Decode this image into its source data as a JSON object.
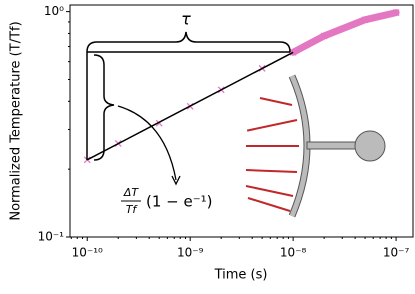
{
  "chart_data": {
    "type": "line",
    "xlabel": "Time (s)",
    "ylabel": "Normalized Temperature (T/Tf)",
    "xscale": "log",
    "yscale": "log",
    "xlim": [
      6.8e-11,
      1.46e-07
    ],
    "ylim": [
      0.1,
      1.07
    ],
    "xticks": [
      {
        "value": 1e-10,
        "label": "10⁻¹⁰"
      },
      {
        "value": 1e-09,
        "label": "10⁻⁹"
      },
      {
        "value": 1e-08,
        "label": "10⁻⁸"
      },
      {
        "value": 1e-07,
        "label": "10⁻⁷"
      }
    ],
    "yticks": [
      {
        "value": 0.1,
        "label": "10⁻¹"
      },
      {
        "value": 1,
        "label": "10⁰"
      }
    ],
    "series": [
      {
        "color": "#e377c2",
        "marker": "x",
        "x": [
          1e-10,
          2e-10,
          5e-10,
          1e-09,
          2e-09,
          5e-09,
          1e-08,
          2e-08,
          5e-08,
          1e-07
        ],
        "values": [
          0.22,
          0.26,
          0.32,
          0.38,
          0.45,
          0.56,
          0.66,
          0.78,
          0.92,
          0.99
        ]
      },
      {
        "color": "#000000",
        "x": [
          1e-10,
          1e-08
        ],
        "values": [
          0.22,
          0.66
        ]
      }
    ],
    "annotations": [
      "τ",
      "ΔT",
      "Tf",
      "(1 − e⁻¹)"
    ]
  }
}
